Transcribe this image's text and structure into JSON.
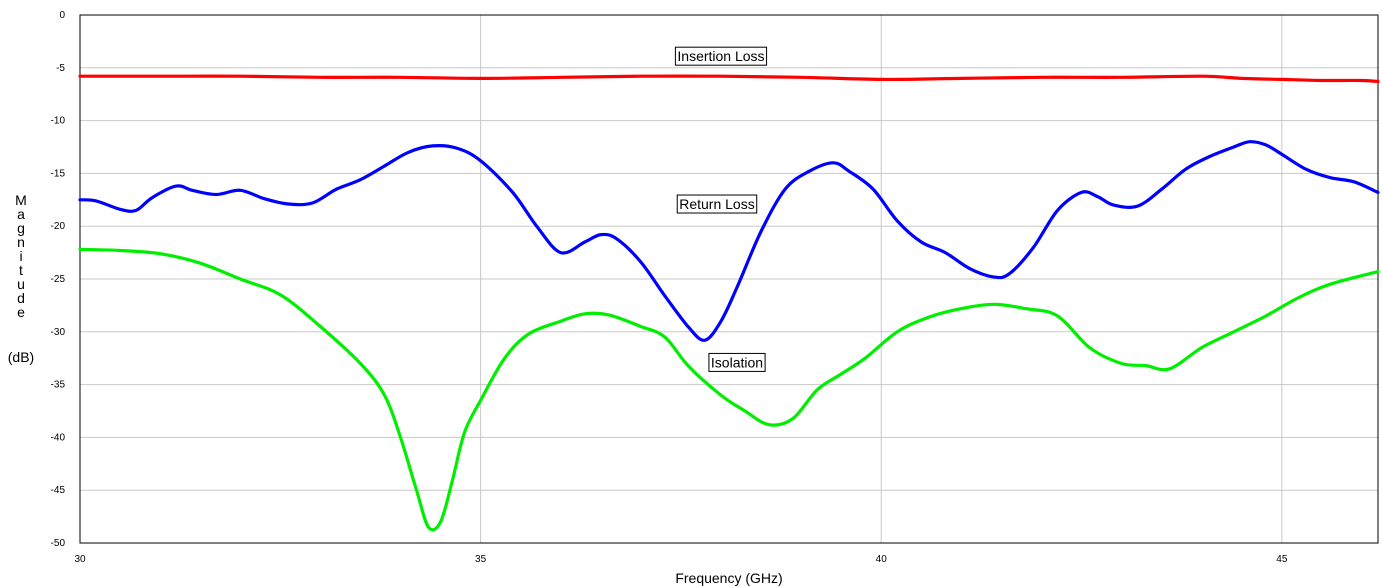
{
  "chart_data": {
    "type": "line",
    "title": "",
    "xlabel": "Frequency (GHz)",
    "ylabel_letters": [
      "M",
      "a",
      "g",
      "n",
      "i",
      "t",
      "u",
      "d",
      "e"
    ],
    "ylabel_unit": "(dB)",
    "xlim": [
      30,
      46.2
    ],
    "ylim": [
      -50,
      0
    ],
    "xticks": [
      30,
      35,
      40,
      45
    ],
    "yticks": [
      0,
      -5,
      -10,
      -15,
      -20,
      -25,
      -30,
      -35,
      -40,
      -45,
      -50
    ],
    "grid": true,
    "series": [
      {
        "name": "Insertion Loss",
        "color": "#ff0000",
        "x": [
          30,
          31,
          32,
          33,
          34,
          35,
          36,
          37,
          38,
          39,
          40,
          41,
          42,
          43,
          44,
          44.5,
          45,
          45.5,
          46,
          46.2
        ],
        "y": [
          -5.8,
          -5.8,
          -5.8,
          -5.9,
          -5.9,
          -6.0,
          -5.9,
          -5.8,
          -5.8,
          -5.9,
          -6.1,
          -6.0,
          -5.9,
          -5.9,
          -5.8,
          -6.0,
          -6.1,
          -6.2,
          -6.2,
          -6.3
        ]
      },
      {
        "name": "Return Loss",
        "color": "#0000ff",
        "x": [
          30,
          30.2,
          30.5,
          30.7,
          30.9,
          31.2,
          31.4,
          31.7,
          32.0,
          32.3,
          32.6,
          32.9,
          33.2,
          33.5,
          33.8,
          34.1,
          34.4,
          34.7,
          35.0,
          35.4,
          35.7,
          36.0,
          36.3,
          36.5,
          36.7,
          37.0,
          37.3,
          37.6,
          37.8,
          38.0,
          38.2,
          38.5,
          38.8,
          39.1,
          39.4,
          39.6,
          39.9,
          40.2,
          40.5,
          40.8,
          41.1,
          41.4,
          41.6,
          41.9,
          42.2,
          42.5,
          42.7,
          42.9,
          43.2,
          43.5,
          43.8,
          44.1,
          44.4,
          44.6,
          44.8,
          45.0,
          45.3,
          45.6,
          45.9,
          46.2
        ],
        "y": [
          -17.5,
          -17.6,
          -18.4,
          -18.5,
          -17.3,
          -16.2,
          -16.6,
          -17.0,
          -16.6,
          -17.4,
          -17.9,
          -17.8,
          -16.5,
          -15.6,
          -14.3,
          -13.0,
          -12.4,
          -12.6,
          -13.8,
          -16.8,
          -20.0,
          -22.5,
          -21.5,
          -20.8,
          -21.2,
          -23.4,
          -26.6,
          -29.6,
          -30.8,
          -29.0,
          -25.8,
          -20.5,
          -16.5,
          -14.8,
          -14.0,
          -14.8,
          -16.5,
          -19.5,
          -21.5,
          -22.5,
          -24.0,
          -24.8,
          -24.5,
          -22.0,
          -18.5,
          -16.8,
          -17.2,
          -18.0,
          -18.1,
          -16.5,
          -14.6,
          -13.4,
          -12.5,
          -12.0,
          -12.3,
          -13.2,
          -14.6,
          -15.4,
          -15.8,
          -16.8
        ]
      },
      {
        "name": "Isolation",
        "color": "#00ee00",
        "x": [
          30,
          30.5,
          31,
          31.5,
          32,
          32.5,
          33,
          33.5,
          33.8,
          34.0,
          34.2,
          34.35,
          34.5,
          34.65,
          34.8,
          35.0,
          35.3,
          35.6,
          36.0,
          36.3,
          36.6,
          37.0,
          37.3,
          37.6,
          38.0,
          38.3,
          38.6,
          38.9,
          39.2,
          39.5,
          39.8,
          40.2,
          40.6,
          41.0,
          41.4,
          41.8,
          42.2,
          42.6,
          43.0,
          43.3,
          43.6,
          44.0,
          44.4,
          44.8,
          45.2,
          45.6,
          46.2
        ],
        "y": [
          -22.2,
          -22.3,
          -22.6,
          -23.5,
          -25.0,
          -26.5,
          -29.5,
          -33.0,
          -36.0,
          -40.0,
          -45.0,
          -48.5,
          -48.0,
          -44.0,
          -39.5,
          -36.5,
          -32.5,
          -30.2,
          -29.0,
          -28.3,
          -28.4,
          -29.5,
          -30.5,
          -33.3,
          -36.0,
          -37.5,
          -38.8,
          -38.2,
          -35.5,
          -34.0,
          -32.5,
          -30.0,
          -28.6,
          -27.8,
          -27.4,
          -27.8,
          -28.5,
          -31.5,
          -33.0,
          -33.2,
          -33.5,
          -31.5,
          -30.0,
          -28.5,
          -26.8,
          -25.5,
          -24.3
        ]
      }
    ],
    "annotations": [
      {
        "text": "Insertion Loss",
        "x": 38.0,
        "y": -3.9
      },
      {
        "text": "Return Loss",
        "x": 37.95,
        "y": -17.9
      },
      {
        "text": "Isolation",
        "x": 38.2,
        "y": -32.9
      }
    ]
  }
}
